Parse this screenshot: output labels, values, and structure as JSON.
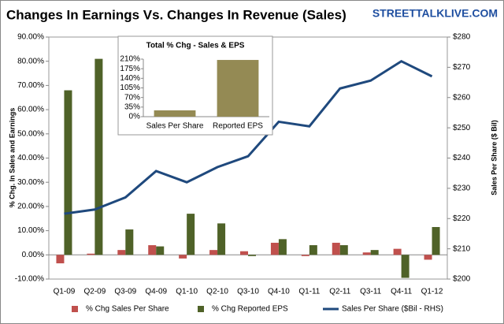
{
  "chart_data": [
    {
      "type": "bar",
      "title": "Changes In Earnings Vs. Changes In Revenue (Sales)",
      "watermark": "STREETTALKLIVE.COM",
      "y_label": "% Chg. In Sales and Earnings",
      "y2_label": "Sales Per Share ($ Bil)",
      "categories": [
        "Q1-09",
        "Q2-09",
        "Q3-09",
        "Q4-09",
        "Q1-10",
        "Q2-10",
        "Q3-10",
        "Q4-10",
        "Q1-11",
        "Q2-11",
        "Q3-11",
        "Q4-11",
        "Q1-12"
      ],
      "series": [
        {
          "name": "% Chg Sales Per Share",
          "color": "#c0504d",
          "values": [
            -3.5,
            0.5,
            2,
            4,
            -1.5,
            2,
            1.5,
            5,
            -0.5,
            5,
            1,
            2.5,
            -2
          ]
        },
        {
          "name": "% Chg Reported EPS",
          "color": "#4f6228",
          "values": [
            68,
            81,
            10.5,
            3.5,
            17,
            13,
            -0.5,
            6.5,
            4,
            4,
            2,
            -9.5,
            11.5
          ]
        },
        {
          "name": "Sales Per Share ($Bil - RHS)",
          "color": "#1f497d",
          "type": "line",
          "axis": "y2",
          "values": [
            221.6,
            223,
            227,
            235.7,
            232,
            237,
            240.6,
            252,
            250.5,
            263,
            265.6,
            272,
            267
          ]
        }
      ],
      "ylim": [
        -10,
        90
      ],
      "yticks": [
        {
          "value": -10,
          "label": "-10.00%"
        },
        {
          "value": 0,
          "label": "0.00%"
        },
        {
          "value": 10,
          "label": "10.00%"
        },
        {
          "value": 20,
          "label": "20.00%"
        },
        {
          "value": 30,
          "label": "30.00%"
        },
        {
          "value": 40,
          "label": "40.00%"
        },
        {
          "value": 50,
          "label": "50.00%"
        },
        {
          "value": 60,
          "label": "60.00%"
        },
        {
          "value": 70,
          "label": "70.00%"
        },
        {
          "value": 80,
          "label": "80.00%"
        },
        {
          "value": 90,
          "label": "90.00%"
        }
      ],
      "y2lim": [
        200,
        280
      ],
      "y2ticks": [
        {
          "value": 200,
          "label": "$200"
        },
        {
          "value": 210,
          "label": "$210"
        },
        {
          "value": 220,
          "label": "$220"
        },
        {
          "value": 230,
          "label": "$230"
        },
        {
          "value": 240,
          "label": "$240"
        },
        {
          "value": 250,
          "label": "$250"
        },
        {
          "value": 260,
          "label": "$260"
        },
        {
          "value": 270,
          "label": "$270"
        },
        {
          "value": 280,
          "label": "$280"
        }
      ],
      "legend": "bottom"
    },
    {
      "type": "bar",
      "title": "Total % Chg - Sales & EPS",
      "categories": [
        "Sales Per Share",
        "Reported EPS"
      ],
      "values": [
        23,
        207
      ],
      "color": "#948a54",
      "ylim": [
        0,
        210
      ],
      "yticks": [
        {
          "value": 0,
          "label": "0%"
        },
        {
          "value": 35,
          "label": "35%"
        },
        {
          "value": 70,
          "label": "70%"
        },
        {
          "value": 105,
          "label": "105%"
        },
        {
          "value": 140,
          "label": "140%"
        },
        {
          "value": 175,
          "label": "175%"
        },
        {
          "value": 210,
          "label": "210%"
        }
      ]
    }
  ]
}
